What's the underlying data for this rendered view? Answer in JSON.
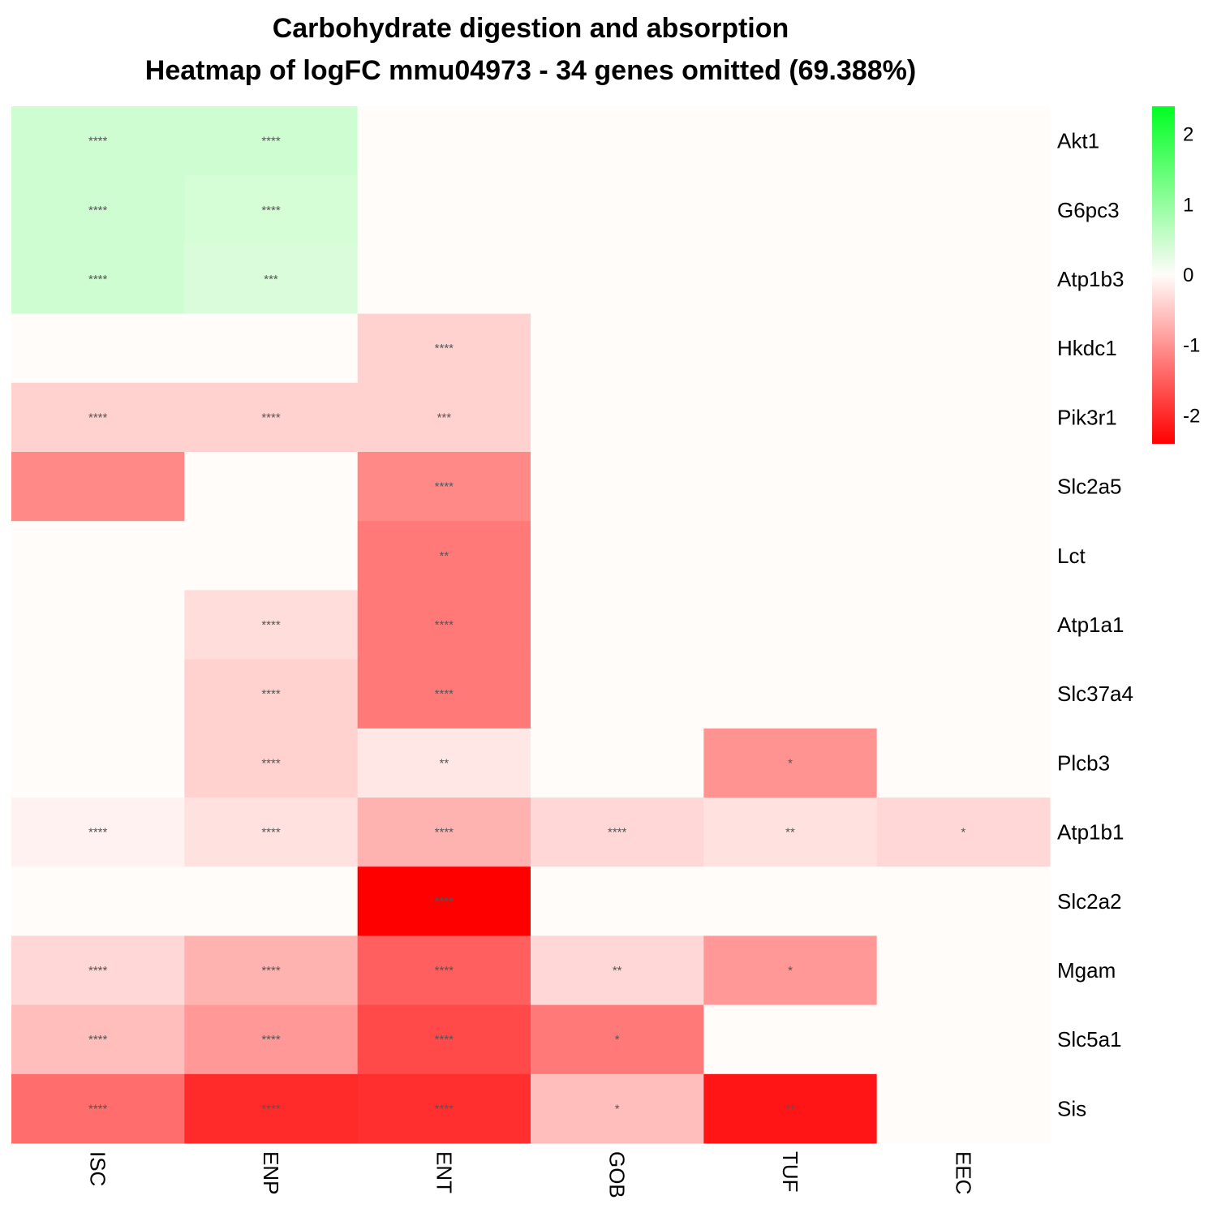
{
  "chart_data": {
    "type": "heatmap",
    "title": "Carbohydrate digestion and absorption",
    "subtitle": "Heatmap of logFC mmu04973 - 34 genes omitted (69.388%)",
    "columns": [
      "ISC",
      "ENP",
      "ENT",
      "GOB",
      "TUF",
      "EEC"
    ],
    "rows": [
      "Akt1",
      "G6pc3",
      "Atp1b3",
      "Hkdc1",
      "Pik3r1",
      "Slc2a5",
      "Lct",
      "Atp1a1",
      "Slc37a4",
      "Plcb3",
      "Atp1b1",
      "Slc2a2",
      "Mgam",
      "Slc5a1",
      "Sis"
    ],
    "values": [
      [
        0.45,
        0.45,
        0,
        0,
        0,
        0
      ],
      [
        0.45,
        0.4,
        0,
        0,
        0,
        0
      ],
      [
        0.45,
        0.35,
        0,
        0,
        0,
        0
      ],
      [
        0,
        0,
        -0.4,
        0,
        0,
        0
      ],
      [
        -0.4,
        -0.4,
        -0.4,
        0,
        0,
        0
      ],
      [
        -1.1,
        0,
        -1.1,
        0,
        0,
        0
      ],
      [
        0,
        0,
        -1.25,
        0,
        0,
        0
      ],
      [
        0,
        -0.3,
        -1.25,
        0,
        0,
        0
      ],
      [
        0,
        -0.4,
        -1.25,
        0,
        0,
        0
      ],
      [
        0,
        -0.4,
        -0.2,
        0,
        -1.0,
        0
      ],
      [
        -0.1,
        -0.25,
        -0.7,
        -0.35,
        -0.25,
        -0.35
      ],
      [
        0,
        0,
        -2.4,
        0,
        0,
        0
      ],
      [
        -0.35,
        -0.7,
        -1.5,
        -0.35,
        -0.95,
        0
      ],
      [
        -0.6,
        -0.95,
        -1.7,
        -1.25,
        0,
        0
      ],
      [
        -1.35,
        -2.0,
        -1.95,
        -0.6,
        -2.2,
        0
      ]
    ],
    "significance": [
      [
        "****",
        "****",
        "",
        "",
        "",
        ""
      ],
      [
        "****",
        "****",
        "",
        "",
        "",
        ""
      ],
      [
        "****",
        "***",
        "",
        "",
        "",
        ""
      ],
      [
        "",
        "",
        "****",
        "",
        "",
        ""
      ],
      [
        "****",
        "****",
        "***",
        "",
        "",
        ""
      ],
      [
        "",
        "",
        "****",
        "",
        "",
        ""
      ],
      [
        "",
        "",
        "**",
        "",
        "",
        ""
      ],
      [
        "",
        "****",
        "****",
        "",
        "",
        ""
      ],
      [
        "",
        "****",
        "****",
        "",
        "",
        ""
      ],
      [
        "",
        "****",
        "**",
        "",
        "*",
        ""
      ],
      [
        "****",
        "****",
        "****",
        "****",
        "**",
        "*"
      ],
      [
        "",
        "",
        "****",
        "",
        "",
        ""
      ],
      [
        "****",
        "****",
        "****",
        "**",
        "*",
        ""
      ],
      [
        "****",
        "****",
        "****",
        "*",
        "",
        ""
      ],
      [
        "****",
        "****",
        "****",
        "*",
        "**",
        ""
      ]
    ],
    "legend": {
      "position": "right",
      "ticks": [
        2,
        1,
        0,
        -1,
        -2
      ],
      "range": [
        -2.4,
        2.4
      ],
      "low_color": "#ff0000",
      "mid_color": "#fffcfa",
      "high_color": "#00ff22"
    }
  }
}
